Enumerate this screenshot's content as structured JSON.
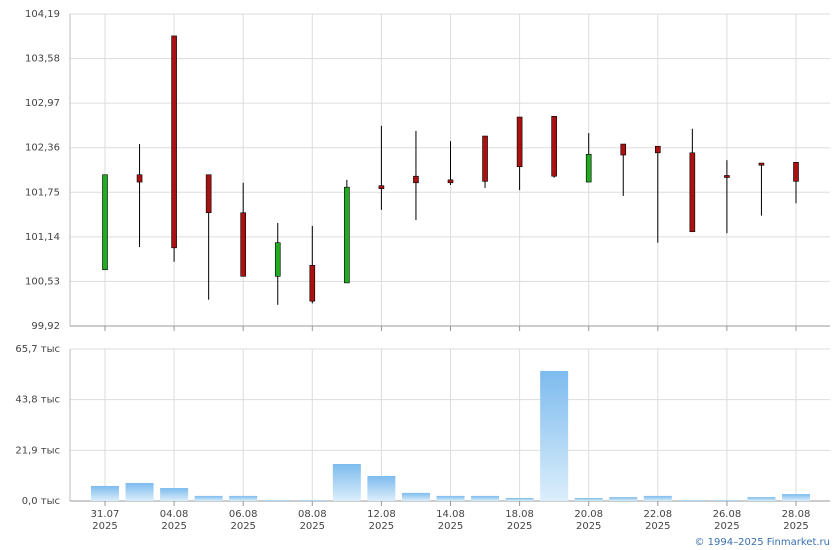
{
  "chart_data": [
    {
      "type": "candlestick",
      "up_color": "#22aa22",
      "down_color": "#aa1111",
      "ylim": [
        99.92,
        104.19
      ],
      "yticks": [
        {
          "value": 104.19,
          "label": "104,19"
        },
        {
          "value": 103.58,
          "label": "103,58"
        },
        {
          "value": 102.97,
          "label": "102,97"
        },
        {
          "value": 102.36,
          "label": "102,36"
        },
        {
          "value": 101.75,
          "label": "101,75"
        },
        {
          "value": 101.14,
          "label": "101,14"
        },
        {
          "value": 100.53,
          "label": "100,53"
        },
        {
          "value": 99.92,
          "label": "99,92"
        }
      ],
      "grid": true,
      "open": [
        100.69,
        101.99,
        103.89,
        101.99,
        101.47,
        100.6,
        100.75,
        100.51,
        101.84,
        101.97,
        101.92,
        102.52,
        102.78,
        102.79,
        101.89,
        102.41,
        102.38,
        102.29,
        101.98,
        102.15,
        102.16
      ],
      "high": [
        101.99,
        102.41,
        103.89,
        101.99,
        101.88,
        101.33,
        101.29,
        101.92,
        102.66,
        102.59,
        102.45,
        102.52,
        102.78,
        102.79,
        102.56,
        102.41,
        102.38,
        102.62,
        102.19,
        102.15,
        102.16
      ],
      "low": [
        100.69,
        101.0,
        100.8,
        100.28,
        100.6,
        100.21,
        100.23,
        100.51,
        101.51,
        101.37,
        101.85,
        101.81,
        101.78,
        101.95,
        101.89,
        101.7,
        101.06,
        101.21,
        101.19,
        101.43,
        101.6
      ],
      "close": [
        101.99,
        101.89,
        100.99,
        101.47,
        100.6,
        101.06,
        100.26,
        101.82,
        101.8,
        101.88,
        101.88,
        101.9,
        102.1,
        101.97,
        102.27,
        102.26,
        102.29,
        101.21,
        101.96,
        102.12,
        101.9
      ]
    },
    {
      "type": "bar",
      "color": "#7dbbee",
      "categories": [
        "31.07",
        null,
        "04.08",
        null,
        "06.08",
        null,
        "08.08",
        null,
        "12.08",
        null,
        "14.08",
        null,
        "18.08",
        null,
        "20.08",
        null,
        "22.08",
        null,
        "26.08",
        null,
        "28.08"
      ],
      "category_years": [
        "2025",
        null,
        "2025",
        null,
        "2025",
        null,
        "2025",
        null,
        "2025",
        null,
        "2025",
        null,
        "2025",
        null,
        "2025",
        null,
        "2025",
        null,
        "2025",
        null,
        "2025"
      ],
      "values": [
        6.5,
        7.8,
        5.6,
        2.2,
        2.2,
        0.4,
        0.4,
        16.0,
        10.8,
        3.5,
        2.2,
        2.2,
        1.3,
        56.2,
        1.3,
        1.7,
        2.2,
        0.4,
        0.4,
        1.7,
        3.0
      ],
      "ylim": [
        0,
        65.7
      ],
      "yticks": [
        {
          "value": 65.7,
          "label": "65,7 тыс"
        },
        {
          "value": 43.8,
          "label": "43,8 тыс"
        },
        {
          "value": 21.9,
          "label": "21,9 тыс"
        },
        {
          "value": 0,
          "label": "0,0 тыс"
        }
      ],
      "grid": true
    }
  ],
  "footer": "© 1994–2025 Finmarket.ru"
}
